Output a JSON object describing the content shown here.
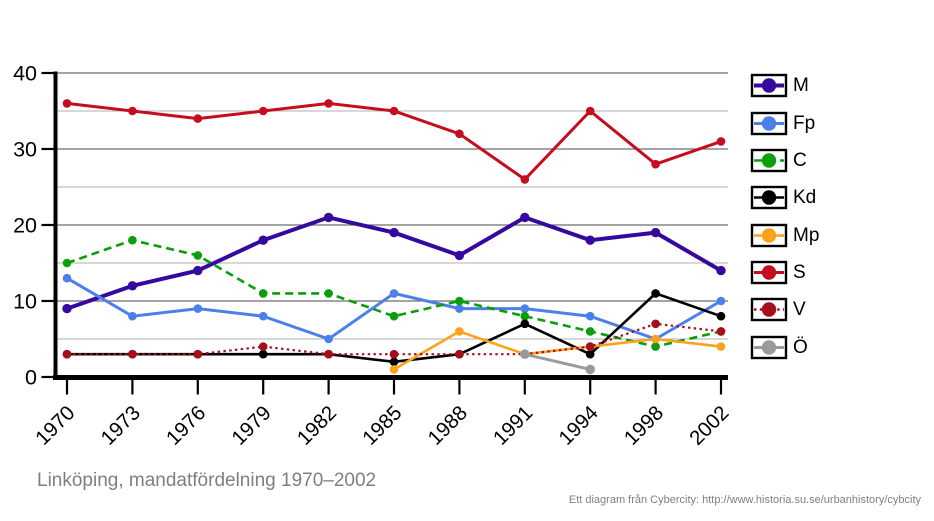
{
  "title": "Linköping, mandatfördelning 1970–2002",
  "attribution": "Ett diagram från Cybercity: http://www.historia.su.se/urbanhistory/cybcity",
  "chart_data": {
    "type": "line",
    "title": "Linköping, mandatfördelning 1970–2002",
    "xlabel": "",
    "ylabel": "",
    "categories": [
      "1970",
      "1973",
      "1976",
      "1979",
      "1982",
      "1985",
      "1988",
      "1991",
      "1994",
      "1998",
      "2002"
    ],
    "ylim": [
      0,
      40
    ],
    "ytick_labels": [
      "0",
      "10",
      "20",
      "30",
      "40"
    ],
    "grid": "horizontal lines every 5, darker every 10",
    "legend_position": "right",
    "series": [
      {
        "name": "M",
        "color": "#35099e",
        "style": "solid",
        "width": 4,
        "marker_r": 4.7,
        "values": [
          9,
          12,
          14,
          18,
          21,
          19,
          16,
          21,
          18,
          19,
          14
        ]
      },
      {
        "name": "Fp",
        "color": "#4b80ea",
        "style": "solid",
        "width": 3,
        "marker_r": 4.3,
        "values": [
          13,
          8,
          9,
          8,
          5,
          11,
          9,
          9,
          8,
          5,
          10
        ]
      },
      {
        "name": "C",
        "color": "#0a9e0a",
        "style": "dashed",
        "width": 2.6,
        "marker_r": 4.3,
        "values": [
          15,
          18,
          16,
          11,
          11,
          8,
          10,
          8,
          6,
          4,
          6
        ]
      },
      {
        "name": "Kd",
        "color": "#000000",
        "style": "solid",
        "width": 2.6,
        "marker_r": 4.3,
        "values": [
          3,
          3,
          3,
          3,
          3,
          2,
          3,
          7,
          3,
          11,
          8
        ]
      },
      {
        "name": "Mp",
        "color": "#ffa11c",
        "style": "solid",
        "width": 2.6,
        "marker_r": 4.3,
        "values": [
          null,
          null,
          null,
          null,
          null,
          1,
          6,
          3,
          4,
          5,
          4
        ]
      },
      {
        "name": "S",
        "color": "#c40e1e",
        "style": "solid",
        "width": 3,
        "marker_r": 4.3,
        "values": [
          36,
          35,
          34,
          35,
          36,
          35,
          32,
          26,
          35,
          28,
          31
        ]
      },
      {
        "name": "V",
        "color": "#a60e1c",
        "style": "dotted",
        "width": 2.2,
        "marker_r": 4.3,
        "values": [
          3,
          3,
          3,
          4,
          3,
          3,
          3,
          3,
          4,
          7,
          6
        ]
      },
      {
        "name": "Ö",
        "color": "#9a9a9a",
        "style": "solid",
        "width": 3,
        "marker_r": 4.8,
        "values": [
          null,
          null,
          null,
          null,
          null,
          null,
          null,
          3,
          1,
          null,
          null
        ]
      }
    ]
  },
  "colors": {
    "grid_major": "#6e6e6e",
    "grid_minor": "#b2b2b2",
    "axis": "#000000",
    "title_text": "#7f7f7f"
  }
}
